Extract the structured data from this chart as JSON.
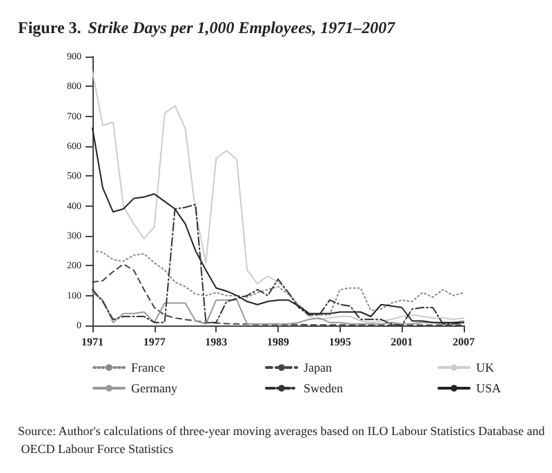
{
  "chart_data": {
    "type": "line",
    "title": "Figure 3. Strike Days per 1,000 Employees, 1971–2007",
    "annotations": [
      "Source: Author's calculations of three-year moving averages based on ILO Labour Statistics Database and OECD Labour Force Statistics"
    ],
    "x": [
      1971,
      1972,
      1973,
      1974,
      1975,
      1976,
      1977,
      1978,
      1979,
      1980,
      1981,
      1982,
      1983,
      1984,
      1985,
      1986,
      1987,
      1988,
      1989,
      1990,
      1991,
      1992,
      1993,
      1994,
      1995,
      1996,
      1997,
      1998,
      1999,
      2000,
      2001,
      2002,
      2003,
      2004,
      2005,
      2006,
      2007
    ],
    "xlim": [
      1971,
      2007
    ],
    "xticks": [
      1971,
      1977,
      1983,
      1989,
      1995,
      2001,
      2007
    ],
    "ylim": [
      0,
      900
    ],
    "yticks": [
      0,
      100,
      200,
      300,
      400,
      500,
      600,
      700,
      800,
      900
    ],
    "legend": "bottom",
    "marker": "none",
    "series": [
      {
        "name": "France",
        "color": "#888888",
        "line_style": "dotted",
        "values": [
          250,
          245,
          220,
          215,
          235,
          240,
          210,
          185,
          145,
          130,
          105,
          100,
          110,
          100,
          100,
          95,
          110,
          120,
          130,
          105,
          70,
          40,
          35,
          35,
          120,
          125,
          125,
          50,
          55,
          75,
          85,
          80,
          110,
          95,
          120,
          100,
          110
        ]
      },
      {
        "name": "Japan",
        "color": "#444444",
        "line_style": "dashed",
        "values": [
          145,
          150,
          180,
          205,
          185,
          120,
          60,
          35,
          25,
          20,
          15,
          10,
          8,
          6,
          5,
          4,
          3,
          3,
          3,
          3,
          3,
          2,
          2,
          2,
          2,
          2,
          2,
          1,
          1,
          1,
          1,
          1,
          1,
          1,
          1,
          1,
          1
        ]
      },
      {
        "name": "UK",
        "color": "#cccccc",
        "line_style": "solid",
        "values": [
          850,
          670,
          680,
          400,
          340,
          290,
          330,
          710,
          735,
          660,
          380,
          210,
          560,
          585,
          555,
          185,
          140,
          165,
          145,
          110,
          70,
          30,
          20,
          25,
          30,
          30,
          15,
          10,
          15,
          20,
          30,
          35,
          30,
          25,
          25,
          20,
          25
        ]
      },
      {
        "name": "Germany",
        "color": "#999999",
        "line_style": "solid",
        "values": [
          110,
          85,
          10,
          40,
          40,
          45,
          10,
          75,
          75,
          75,
          15,
          5,
          85,
          85,
          85,
          5,
          5,
          5,
          5,
          5,
          10,
          20,
          25,
          10,
          10,
          5,
          5,
          5,
          5,
          10,
          5,
          5,
          10,
          10,
          5,
          10,
          15
        ]
      },
      {
        "name": "Sweden",
        "color": "#333333",
        "line_style": "dashdot",
        "values": [
          120,
          80,
          20,
          30,
          30,
          30,
          10,
          10,
          390,
          395,
          405,
          10,
          10,
          80,
          90,
          100,
          120,
          100,
          155,
          110,
          60,
          35,
          35,
          85,
          70,
          65,
          20,
          20,
          20,
          5,
          0,
          55,
          60,
          60,
          5,
          5,
          10
        ]
      },
      {
        "name": "USA",
        "color": "#222222",
        "line_style": "solid",
        "values": [
          660,
          460,
          380,
          390,
          425,
          430,
          440,
          415,
          390,
          340,
          250,
          185,
          125,
          115,
          100,
          80,
          70,
          80,
          85,
          85,
          65,
          40,
          40,
          40,
          45,
          45,
          45,
          30,
          70,
          65,
          60,
          15,
          15,
          10,
          10,
          10,
          10
        ]
      }
    ]
  }
}
